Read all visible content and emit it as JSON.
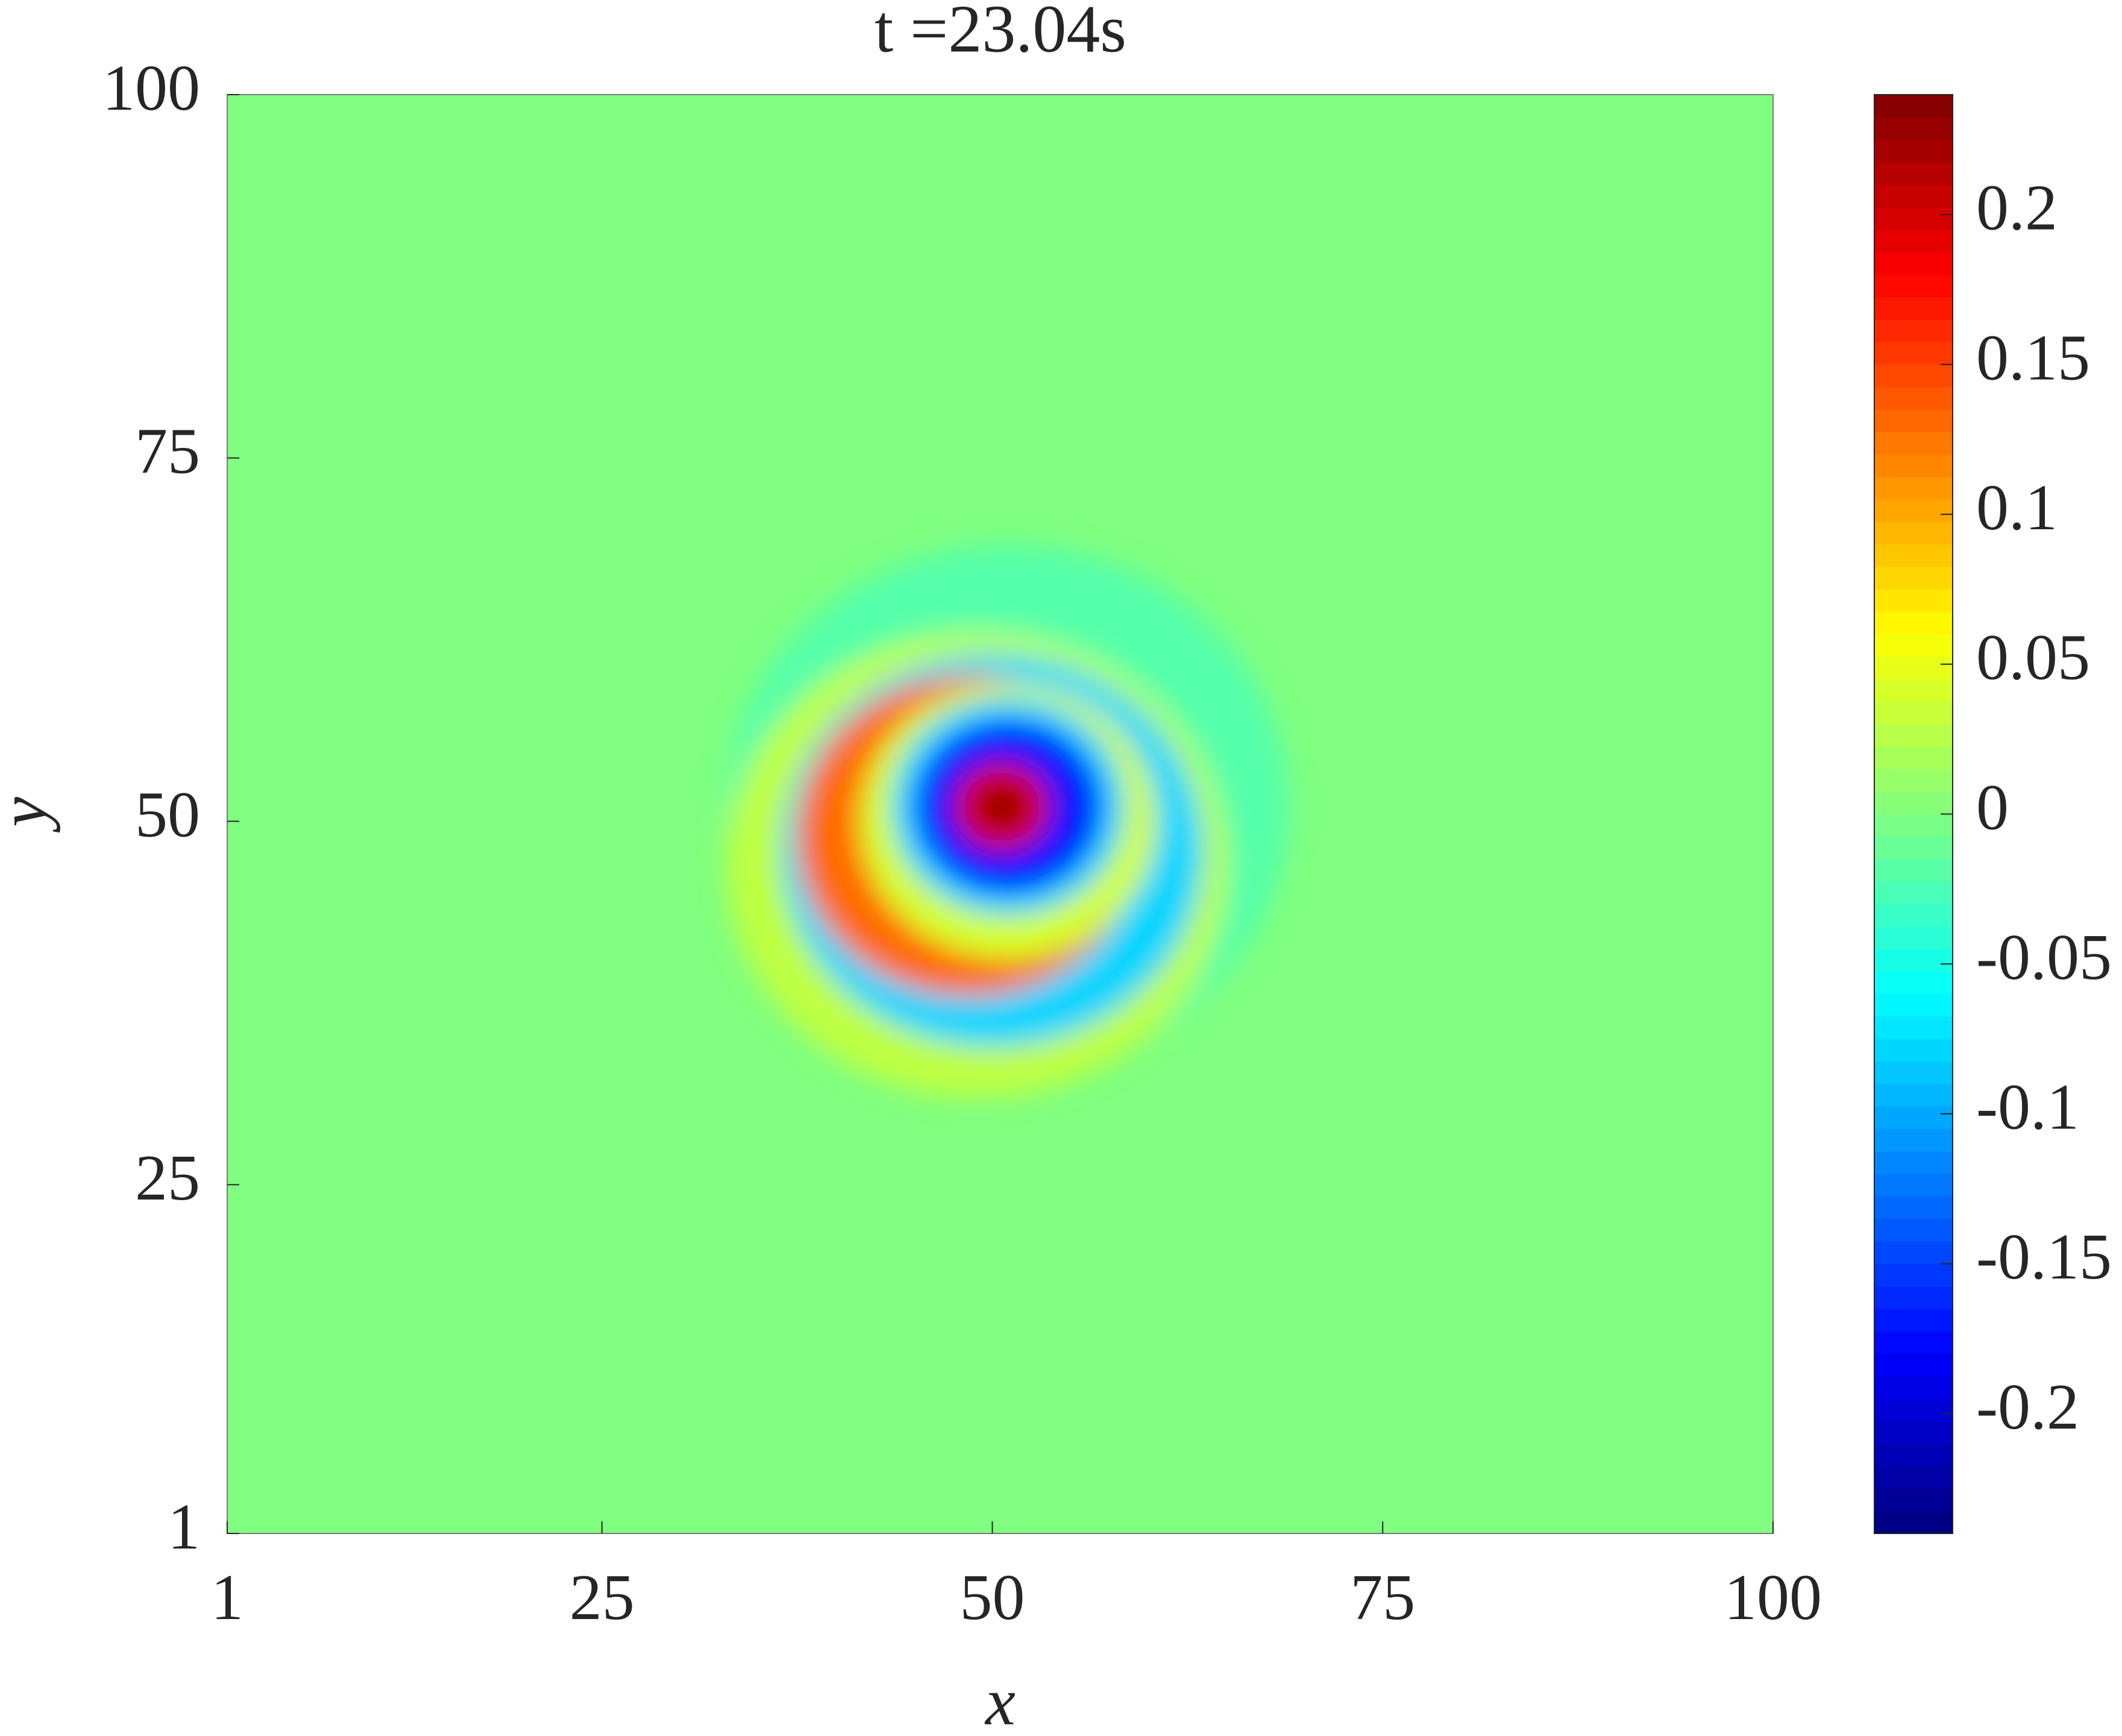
{
  "chart_data": {
    "type": "heatmap",
    "title": "t =23.04s",
    "x_label": "x",
    "y_label": "y",
    "xlim": [
      1,
      100
    ],
    "ylim": [
      1,
      100
    ],
    "xticks": [
      1,
      25,
      50,
      75,
      100
    ],
    "yticks": [
      1,
      25,
      50,
      75,
      100
    ],
    "colormap": "jet",
    "clim": [
      -0.24,
      0.24
    ],
    "cticks": [
      -0.2,
      -0.15,
      -0.1,
      -0.05,
      0,
      0.05,
      0.1,
      0.15,
      0.2
    ],
    "background_value": 0,
    "rings": [
      {
        "x": 51,
        "y": 51,
        "r": 18,
        "value": -0.02
      },
      {
        "x": 49,
        "y": 47,
        "r": 16,
        "value": 0.03
      },
      {
        "x": 50,
        "y": 48,
        "r": 13.5,
        "value": -0.08
      },
      {
        "x": 48.5,
        "y": 49,
        "r": 11,
        "value": 0.13
      },
      {
        "x": 51,
        "y": 50,
        "r": 9.5,
        "value": 0.04
      },
      {
        "x": 51,
        "y": 51,
        "r": 7.5,
        "value": -0.08
      },
      {
        "x": 51,
        "y": 51,
        "r": 6,
        "value": -0.17
      },
      {
        "x": 50.6,
        "y": 51,
        "r": 3,
        "value": 0.2
      },
      {
        "x": 50.6,
        "y": 51,
        "r": 1.2,
        "value": 0.24
      }
    ]
  }
}
